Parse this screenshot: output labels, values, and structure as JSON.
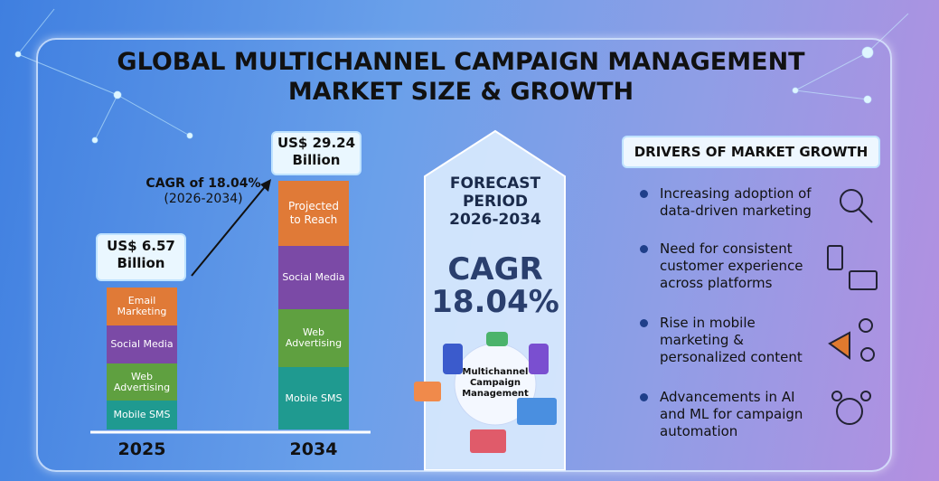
{
  "title": [
    "GLOBAL MULTICHANNEL CAMPAIGN MANAGEMENT",
    "MARKET SIZE & GROWTH"
  ],
  "bars": [
    {
      "year": "2025",
      "value_label": "US$ 6.57",
      "unit": "Billion",
      "segments": [
        "Email Marketing",
        "Social Media",
        "Web Advertising",
        "Mobile SMS"
      ]
    },
    {
      "year": "2034",
      "value_label": "US$ 29.24",
      "unit": "Billion",
      "segments": [
        "Projected to Reach",
        "Social Media",
        "Web Advertising",
        "Mobile SMS"
      ]
    }
  ],
  "cagr_note": {
    "label": "CAGR of 18.04%",
    "period": "(2026-2034)"
  },
  "forecast": {
    "title": [
      "FORECAST",
      "PERIOD",
      "2026-2034"
    ],
    "cagr": [
      "CAGR",
      "18.04%"
    ],
    "hub": "Multichannel Campaign Management"
  },
  "drivers": {
    "title": "DRIVERS OF MARKET GROWTH",
    "items": [
      "Increasing adoption of data-driven marketing",
      "Need for consistent customer experience across platforms",
      "Rise in mobile marketing & personalized content",
      "Advancements in AI and ML for campaign automation"
    ]
  }
}
